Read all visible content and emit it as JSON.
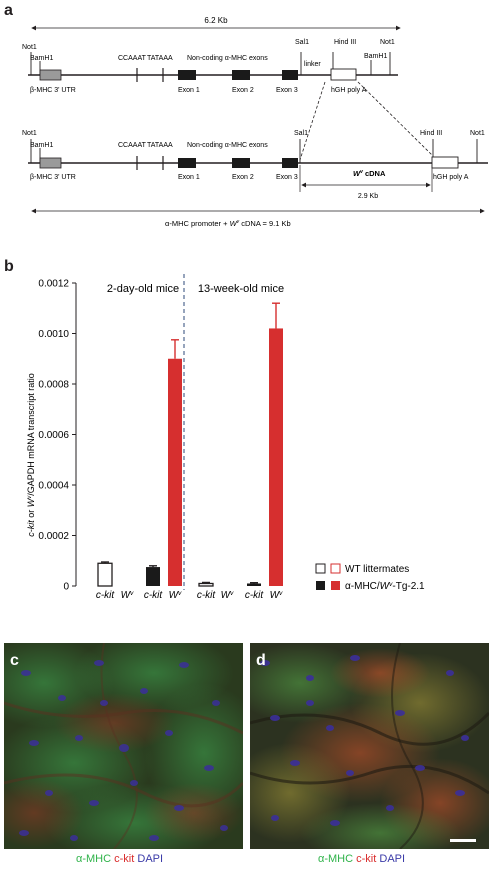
{
  "panel_a": {
    "letter": "a",
    "construct1": {
      "length_label": "6.2 Kb",
      "sites": [
        "Not1",
        "BamH1",
        "Sal1",
        "Hind III",
        "BamH1",
        "Not1"
      ],
      "promoter_elements": [
        "CCAAAT",
        "TATAAA"
      ],
      "noncoding_label": "Non-coding α-MHC exons",
      "exons": [
        "Exon 1",
        "Exon 2",
        "Exon 3"
      ],
      "utr_label": "β-MHC 3' UTR",
      "linker_label": "linker",
      "polya_label": "hGH poly A"
    },
    "construct2": {
      "sites": [
        "Not1",
        "BamH1",
        "Sal1",
        "Hind III",
        "Not1"
      ],
      "promoter_elements": [
        "CCAAAT",
        "TATAAA"
      ],
      "noncoding_label": "Non-coding α-MHC exons",
      "exons": [
        "Exon 1",
        "Exon 2",
        "Exon 3"
      ],
      "utr_label": "β-MHC 3' UTR",
      "cdna_label_prefix": "W",
      "cdna_label_sup": "v",
      "cdna_label_suffix": " cDNA",
      "cdna_length": "2.9 Kb",
      "polya_label": "hGH poly A"
    },
    "total_label_prefix": "α-MHC promoter + ",
    "total_label_gene": "W",
    "total_label_sup": "v",
    "total_label_suffix": " cDNA = 9.1 Kb"
  },
  "panel_b": {
    "letter": "b",
    "chart_data": {
      "type": "bar",
      "ylabel_parts": [
        "c-kit",
        " or ",
        "W",
        "v",
        "/GAPDH mRNA transcript ratio"
      ],
      "ylim": [
        0,
        0.0012
      ],
      "yticks": [
        "0",
        "0.0002",
        "0.0004",
        "0.0006",
        "0.0008",
        "0.0010",
        "0.0012"
      ],
      "ytick_values": [
        0,
        0.0002,
        0.0004,
        0.0006,
        0.0008,
        0.001,
        0.0012
      ],
      "groups": [
        {
          "label": "2-day-old mice",
          "bars": [
            {
              "category": "c-kit",
              "genotype": "WT littermates",
              "value": 9e-05,
              "error": 5e-06
            },
            {
              "category": "Wv",
              "genotype": "WT littermates",
              "value": 0,
              "error": 0
            },
            {
              "category": "c-kit",
              "genotype": "α-MHC/Wv-Tg-2.1",
              "value": 7.5e-05,
              "error": 5e-06
            },
            {
              "category": "Wv",
              "genotype": "α-MHC/Wv-Tg-2.1",
              "value": 0.0009,
              "error": 7.5e-05
            }
          ]
        },
        {
          "label": "13-week-old mice",
          "bars": [
            {
              "category": "c-kit",
              "genotype": "WT littermates",
              "value": 1e-05,
              "error": 4e-06
            },
            {
              "category": "Wv",
              "genotype": "WT littermates",
              "value": 0,
              "error": 0
            },
            {
              "category": "c-kit",
              "genotype": "α-MHC/Wv-Tg-2.1",
              "value": 1e-05,
              "error": 3e-06
            },
            {
              "category": "Wv",
              "genotype": "α-MHC/Wv-Tg-2.1",
              "value": 0.00102,
              "error": 0.0001
            }
          ]
        }
      ],
      "xlabels": [
        {
          "main": "c-kit",
          "sup": ""
        },
        {
          "main": "W",
          "sup": "v"
        },
        {
          "main": "c-kit",
          "sup": ""
        },
        {
          "main": "W",
          "sup": "v"
        },
        {
          "main": "c-kit",
          "sup": ""
        },
        {
          "main": "W",
          "sup": "v"
        },
        {
          "main": "c-kit",
          "sup": ""
        },
        {
          "main": "W",
          "sup": "v"
        }
      ],
      "legend": [
        {
          "label": "WT littermates",
          "colors": [
            "#ffffff",
            "#ffffff"
          ]
        },
        {
          "label_prefix": "α-MHC/",
          "label_gene": "W",
          "label_sup": "v",
          "label_suffix": "-Tg-2.1",
          "colors": [
            "#1a1a1a",
            "#d62f2f"
          ]
        }
      ],
      "colors": {
        "wt_outline": "#231f20",
        "wt_wv_outline": "#d62f2f",
        "tg_ckit": "#1a1a1a",
        "tg_wv": "#d62f2f"
      },
      "legend_position": "bottom-right"
    }
  },
  "panel_c": {
    "letter": "c",
    "caption": {
      "alpha": "α-MHC",
      "ckit": "c-kit",
      "dapi": "DAPI"
    }
  },
  "panel_d": {
    "letter": "d",
    "caption": {
      "alpha": "α-MHC",
      "ckit": "c-kit",
      "dapi": "DAPI"
    }
  }
}
